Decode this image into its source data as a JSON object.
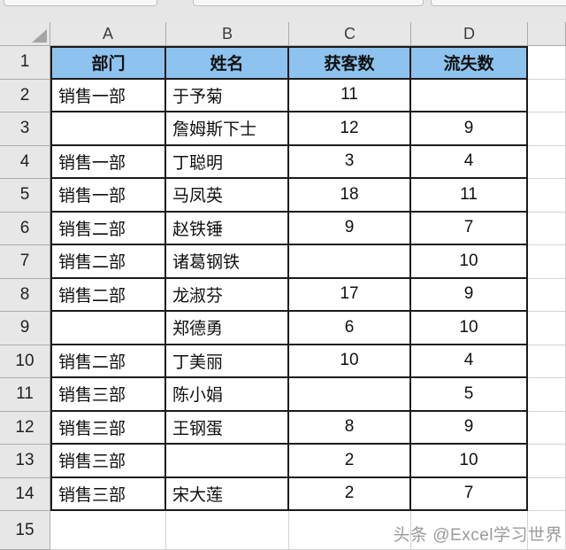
{
  "columns": [
    "A",
    "B",
    "C",
    "D"
  ],
  "row_numbers": [
    "1",
    "2",
    "3",
    "4",
    "5",
    "6",
    "7",
    "8",
    "9",
    "10",
    "11",
    "12",
    "13",
    "14",
    "15"
  ],
  "table_headers": {
    "dept": "部门",
    "name": "姓名",
    "acquired": "获客数",
    "lost": "流失数"
  },
  "records": [
    {
      "dept": "销售一部",
      "name": "于予菊",
      "acquired": "11",
      "lost": ""
    },
    {
      "dept": "",
      "name": "詹姆斯下士",
      "acquired": "12",
      "lost": "9"
    },
    {
      "dept": "销售一部",
      "name": "丁聪明",
      "acquired": "3",
      "lost": "4"
    },
    {
      "dept": "销售一部",
      "name": "马凤英",
      "acquired": "18",
      "lost": "11"
    },
    {
      "dept": "销售二部",
      "name": "赵铁锤",
      "acquired": "9",
      "lost": "7"
    },
    {
      "dept": "销售二部",
      "name": "诸葛钢铁",
      "acquired": "",
      "lost": "10"
    },
    {
      "dept": "销售二部",
      "name": "龙淑芬",
      "acquired": "17",
      "lost": "9"
    },
    {
      "dept": "",
      "name": "郑德勇",
      "acquired": "6",
      "lost": "10"
    },
    {
      "dept": "销售二部",
      "name": "丁美丽",
      "acquired": "10",
      "lost": "4"
    },
    {
      "dept": "销售三部",
      "name": "陈小娟",
      "acquired": "",
      "lost": "5"
    },
    {
      "dept": "销售三部",
      "name": "王钢蛋",
      "acquired": "8",
      "lost": "9"
    },
    {
      "dept": "销售三部",
      "name": "",
      "acquired": "2",
      "lost": "10"
    },
    {
      "dept": "销售三部",
      "name": "宋大莲",
      "acquired": "2",
      "lost": "7"
    }
  ],
  "watermark": "头条 @Excel学习世界",
  "icons": {
    "select_all_triangle": "lower-right-triangle"
  },
  "colors": {
    "header_fill": "#8DC3EE",
    "table_border": "#1B1B1B",
    "header_gray": "#E8E7E7",
    "gridline": "#D5D3D3"
  }
}
